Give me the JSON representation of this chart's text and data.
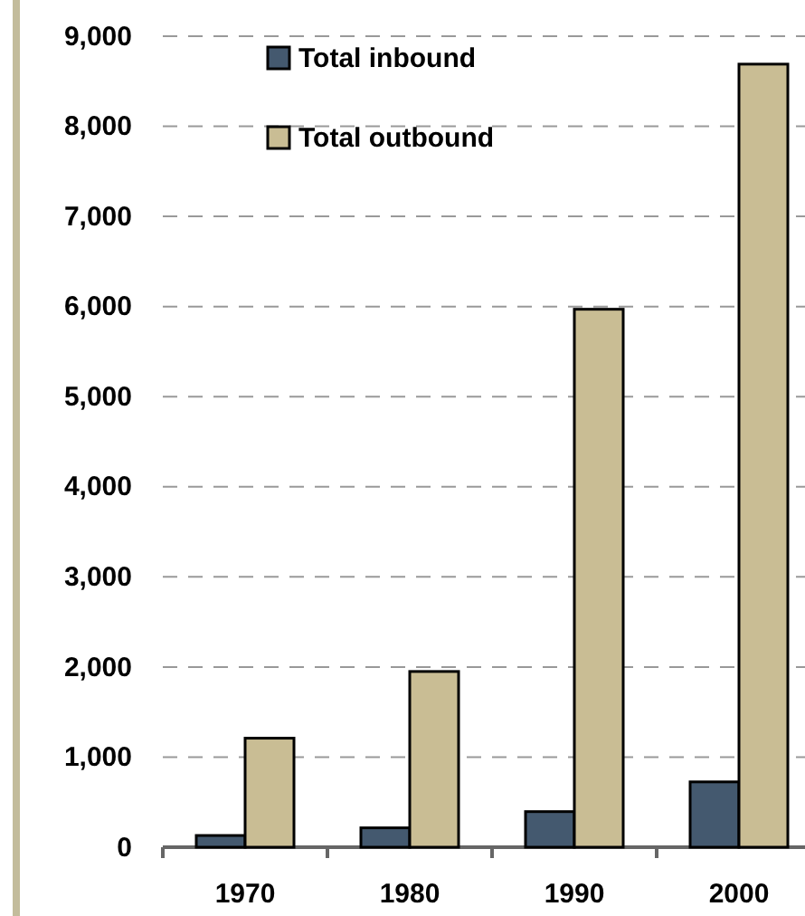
{
  "chart_data": {
    "type": "bar",
    "categories": [
      "1970",
      "1980",
      "1990",
      "2000"
    ],
    "series": [
      {
        "name": "Total inbound",
        "color": "#44596f",
        "values": [
          130,
          215,
          395,
          725
        ]
      },
      {
        "name": "Total outbound",
        "color": "#c9bd94",
        "values": [
          1210,
          1950,
          5970,
          8690
        ]
      }
    ],
    "ylim": [
      0,
      9000
    ],
    "yticks": [
      {
        "value": 0,
        "label": "0"
      },
      {
        "value": 1000,
        "label": "1,000"
      },
      {
        "value": 2000,
        "label": "2,000"
      },
      {
        "value": 3000,
        "label": "3,000"
      },
      {
        "value": 4000,
        "label": "4,000"
      },
      {
        "value": 5000,
        "label": "5,000"
      },
      {
        "value": 6000,
        "label": "6,000"
      },
      {
        "value": 7000,
        "label": "7,000"
      },
      {
        "value": 8000,
        "label": "8,000"
      },
      {
        "value": 9000,
        "label": "9,000"
      }
    ],
    "grid": "y",
    "legend": "top left"
  }
}
